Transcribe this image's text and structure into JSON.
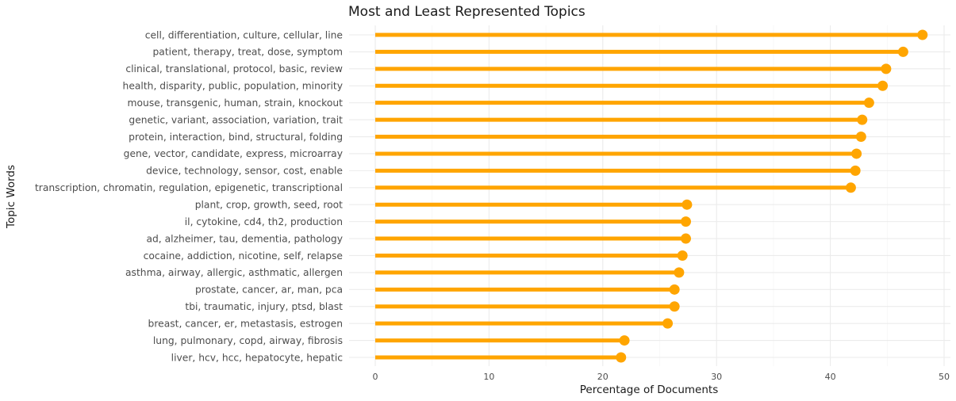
{
  "chart_data": {
    "type": "lollipop",
    "title": "Most and Least Represented Topics",
    "xlabel": "Percentage of Documents",
    "ylabel": "Topic Words",
    "xlim": [
      0,
      50
    ],
    "xticks": [
      0,
      10,
      20,
      30,
      40,
      50
    ],
    "grid": true,
    "color": "#FFA500",
    "categories": [
      "cell, differentiation, culture, cellular, line",
      "patient, therapy, treat, dose, symptom",
      "clinical, translational, protocol, basic, review",
      "health, disparity, public, population, minority",
      "mouse, transgenic, human, strain, knockout",
      "genetic, variant, association, variation, trait",
      "protein, interaction, bind, structural, folding",
      "gene, vector, candidate, express, microarray",
      "device, technology, sensor, cost, enable",
      "transcription, chromatin, regulation, epigenetic, transcriptional",
      "plant, crop, growth, seed, root",
      "il, cytokine, cd4, th2, production",
      "ad, alzheimer, tau, dementia, pathology",
      "cocaine, addiction, nicotine, self, relapse",
      "asthma, airway, allergic, asthmatic, allergen",
      "prostate, cancer, ar, man, pca",
      "tbi, traumatic, injury, ptsd, blast",
      "breast, cancer, er, metastasis, estrogen",
      "lung, pulmonary, copd, airway, fibrosis",
      "liver, hcv, hcc, hepatocyte, hepatic"
    ],
    "values": [
      48.1,
      46.4,
      44.9,
      44.6,
      43.4,
      42.8,
      42.7,
      42.3,
      42.2,
      41.8,
      27.4,
      27.3,
      27.3,
      27.0,
      26.7,
      26.3,
      26.3,
      25.7,
      21.9,
      21.6
    ]
  }
}
